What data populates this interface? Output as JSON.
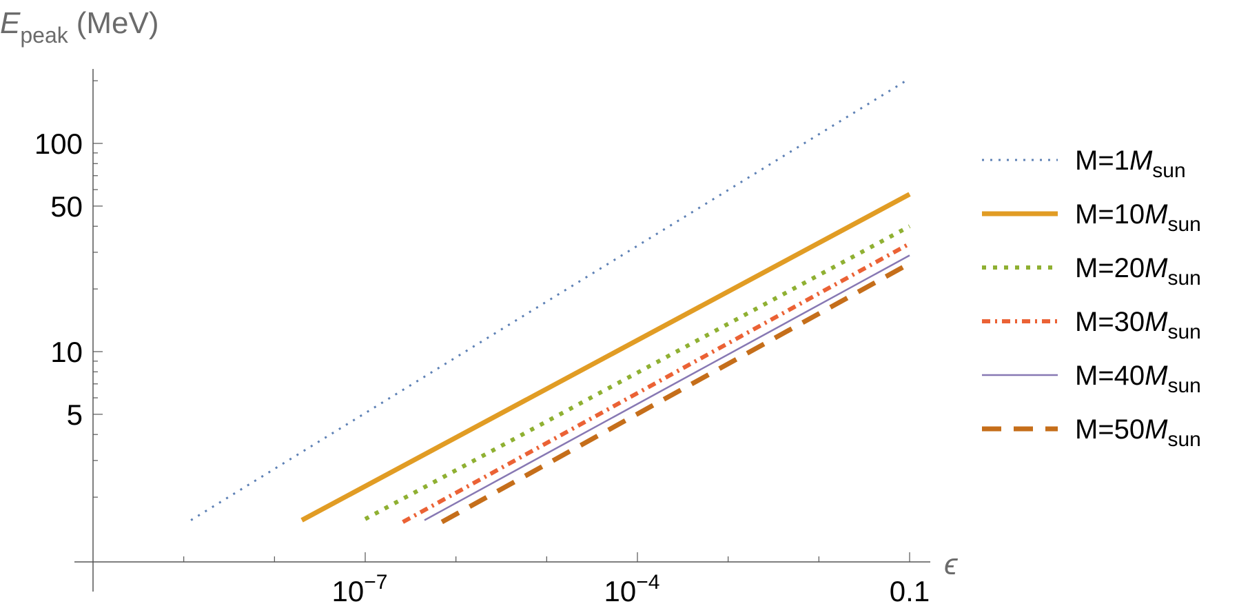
{
  "chart_data": {
    "type": "line",
    "title": "",
    "ylabel": {
      "main": "E",
      "sub": "peak",
      "unit": "(MeV)"
    },
    "xlabel": "ϵ",
    "x_scale": "log",
    "y_scale": "log",
    "xlim": [
      5e-10,
      0.15
    ],
    "ylim": [
      1.1,
      320
    ],
    "x_ticks": [
      {
        "value": 1e-07,
        "base": "10",
        "exp": "−7"
      },
      {
        "value": 0.0001,
        "base": "10",
        "exp": "−4"
      },
      {
        "value": 0.1,
        "label": "0.1"
      }
    ],
    "y_ticks": [
      {
        "value": 5,
        "label": "5"
      },
      {
        "value": 10,
        "label": "10"
      },
      {
        "value": 50,
        "label": "50"
      },
      {
        "value": 100,
        "label": "100"
      }
    ],
    "legend_position": "right",
    "series": [
      {
        "name": "M=1",
        "name_sub": "sun",
        "color": "#5e81b5",
        "style": "dotted",
        "x": [
          1.2e-09,
          0.1
        ],
        "y": [
          1.55,
          205
        ]
      },
      {
        "name": "M=10",
        "name_sub": "sun",
        "color": "#e19c24",
        "style": "solid-thick",
        "x": [
          2e-08,
          0.1
        ],
        "y": [
          1.55,
          57
        ]
      },
      {
        "name": "M=20",
        "name_sub": "sun",
        "color": "#8fb032",
        "style": "dotted-thick",
        "x": [
          1e-07,
          0.1
        ],
        "y": [
          1.57,
          40
        ]
      },
      {
        "name": "M=30",
        "name_sub": "sun",
        "color": "#eb6235",
        "style": "dashdot",
        "x": [
          2.6e-07,
          0.1
        ],
        "y": [
          1.52,
          33
        ]
      },
      {
        "name": "M=40",
        "name_sub": "sun",
        "color": "#8778b3",
        "style": "solid-thin",
        "x": [
          4.5e-07,
          0.1
        ],
        "y": [
          1.55,
          29
        ]
      },
      {
        "name": "M=50",
        "name_sub": "sun",
        "color": "#c56e1a",
        "style": "dashed",
        "x": [
          7e-07,
          0.1
        ],
        "y": [
          1.52,
          26.5
        ]
      }
    ],
    "legend_symbol": "M"
  }
}
